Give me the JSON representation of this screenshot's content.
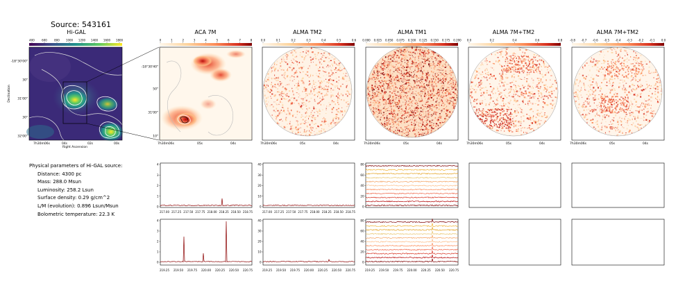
{
  "figure": {
    "source_title": "Source: 543161",
    "colors": {
      "fire": [
        "#fff7ec",
        "#fdd49e",
        "#fc8d59",
        "#d7301f",
        "#7f0000"
      ],
      "viridis": [
        "#440154",
        "#3b528b",
        "#21918c",
        "#5ec962",
        "#fde725"
      ],
      "contour": "#999999",
      "spectrum": "#8b0000"
    }
  },
  "higal": {
    "title": "Hi-GAL",
    "colorbar_ticks": [
      "400",
      "600",
      "800",
      "1000",
      "1200",
      "1400",
      "1600",
      "1800"
    ],
    "yticks": [
      "-18°30'00\"",
      "30\"",
      "31'00\"",
      "30\"",
      "32'00\""
    ],
    "xticks": [
      "7h30m06s",
      "04s",
      "02s",
      "00s"
    ],
    "xlabel": "Right Ascension",
    "ylabel": "Declination"
  },
  "maps": [
    {
      "title": "ACA 7M",
      "colorbar_ticks": [
        "0",
        "1",
        "2",
        "3",
        "4",
        "5",
        "6",
        "7",
        "8"
      ],
      "yticks": [
        "-18°30'40\"",
        "50\"",
        "31'00\"",
        "10\""
      ],
      "xticks": [
        "7h30m06s",
        "05s",
        "04s"
      ]
    },
    {
      "title": "ALMA TM2",
      "colorbar_ticks": [
        "0.0",
        "0.1",
        "0.2",
        "0.3",
        "0.4",
        "0.5",
        "0.6"
      ],
      "xticks": [
        "7h30m06s",
        "05s",
        "04s"
      ]
    },
    {
      "title": "ALMA TM1",
      "colorbar_ticks": [
        "0.000",
        "0.025",
        "0.050",
        "0.075",
        "0.100",
        "0.125",
        "0.150",
        "0.175",
        "0.200"
      ],
      "xticks": [
        "7h30m06s",
        "05s",
        "04s"
      ]
    },
    {
      "title": "ALMA 7M+TM2",
      "colorbar_ticks": [
        "0.0",
        "0.2",
        "0.4",
        "0.6",
        "0.8"
      ],
      "xticks": [
        "7h30m06s",
        "05s",
        "04s"
      ]
    },
    {
      "title": "ALMA 7M+TM2",
      "colorbar_ticks": [
        "-0.8",
        "-0.7",
        "-0.6",
        "-0.5",
        "-0.4",
        "-0.3",
        "-0.2",
        "-0.1",
        "0.0"
      ],
      "xticks": [
        "7h30m06s",
        "05s",
        "04s"
      ]
    }
  ],
  "parameters": {
    "heading": "Physical parameters of Hi-GAL source:",
    "distance": "Distance: 4300 pc",
    "mass": "Mass: 288.0 Msun",
    "luminosity": "Luminosity: 258.2 Lsun",
    "surface_density": "Surface density: 0.29 g/cm^2",
    "lm": "L/M (evolution): 0.896 Lsun/Msun",
    "tbol": "Bolometric temperature: 22.3 K"
  },
  "spectra": {
    "row1_xticks": [
      "217.00",
      "217.25",
      "217.50",
      "217.75",
      "218.00",
      "218.25",
      "218.50",
      "218.75"
    ],
    "row2_xticks": [
      "219.25",
      "219.50",
      "219.75",
      "220.00",
      "220.25",
      "220.50",
      "220.75"
    ],
    "yticks_4": [
      "0",
      "1",
      "2",
      "3",
      "4"
    ],
    "yticks_40": [
      "0",
      "10",
      "20",
      "30",
      "40"
    ],
    "yticks_80": [
      "0",
      "20",
      "40",
      "60",
      "80"
    ]
  }
}
